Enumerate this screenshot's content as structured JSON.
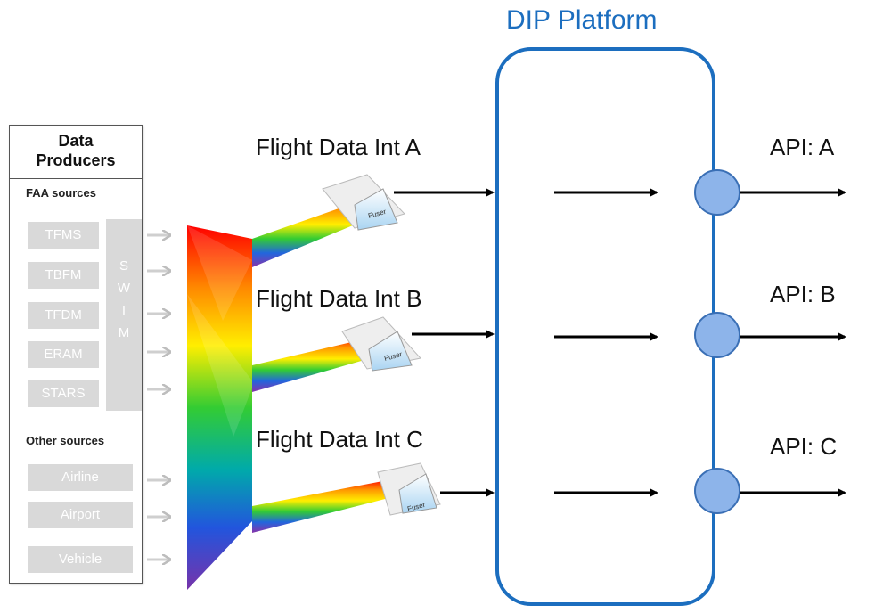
{
  "producers": {
    "title_line1": "Data",
    "title_line2": "Producers",
    "faa_label": "FAA sources",
    "faa_sources": [
      "TFMS",
      "TBFM",
      "TFDM",
      "ERAM",
      "STARS"
    ],
    "swim_letters": [
      "S",
      "W",
      "I",
      "M"
    ],
    "other_label": "Other sources",
    "other_sources": [
      "Airline",
      "Airport",
      "Vehicle"
    ]
  },
  "integrations": [
    "Flight Data Int A",
    "Flight Data Int B",
    "Flight Data Int C"
  ],
  "fuser_label": "Fuser",
  "platform": {
    "title": "DIP Platform"
  },
  "apis": [
    "API: A",
    "API: B",
    "API: C"
  ],
  "colors": {
    "platform_border": "#1c6ebf",
    "node_fill": "#8db4ea",
    "source_box": "#d9d9d9",
    "arrow": "#000000"
  }
}
